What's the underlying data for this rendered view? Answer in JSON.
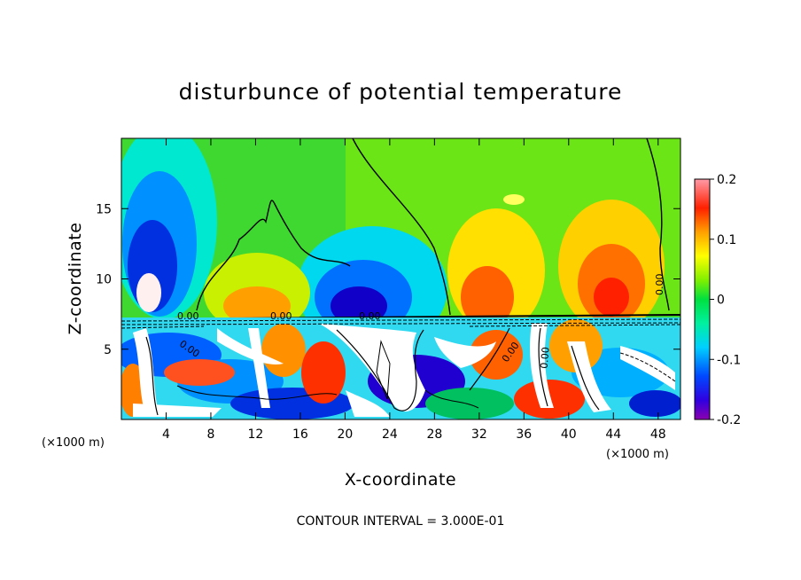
{
  "chart_data": {
    "type": "heatmap",
    "title": "disturbunce of potential temperature",
    "xlabel": "X-coordinate",
    "ylabel": "Z-coordinate",
    "x_unit": "(×1000 m)",
    "z_unit": "(×1000 m)",
    "x_range": [
      0,
      50
    ],
    "z_range": [
      0,
      20
    ],
    "x_ticks": [
      4,
      8,
      12,
      16,
      20,
      24,
      28,
      32,
      36,
      40,
      44,
      48
    ],
    "z_ticks": [
      5,
      10,
      15
    ],
    "colorbar": {
      "range": [
        -0.2,
        0.2
      ],
      "ticks": [
        "0.2",
        "0.1",
        "0",
        "-0.1",
        "-0.2"
      ],
      "tick_values": [
        0.2,
        0.1,
        0,
        -0.1,
        -0.2
      ]
    },
    "contour_label": "0.00",
    "contour_interval_text": "CONTOUR INTERVAL = 3.000E-01",
    "palette": [
      "#8b00b0",
      "#5a00c8",
      "#0000e0",
      "#0048ff",
      "#0090ff",
      "#00d0ff",
      "#00ffe0",
      "#00f0a0",
      "#00e040",
      "#30e000",
      "#90f000",
      "#d0f000",
      "#ffff00",
      "#ffd000",
      "#ffa000",
      "#ff6000",
      "#ff2000",
      "#ff5060",
      "#ff9aa8"
    ]
  }
}
